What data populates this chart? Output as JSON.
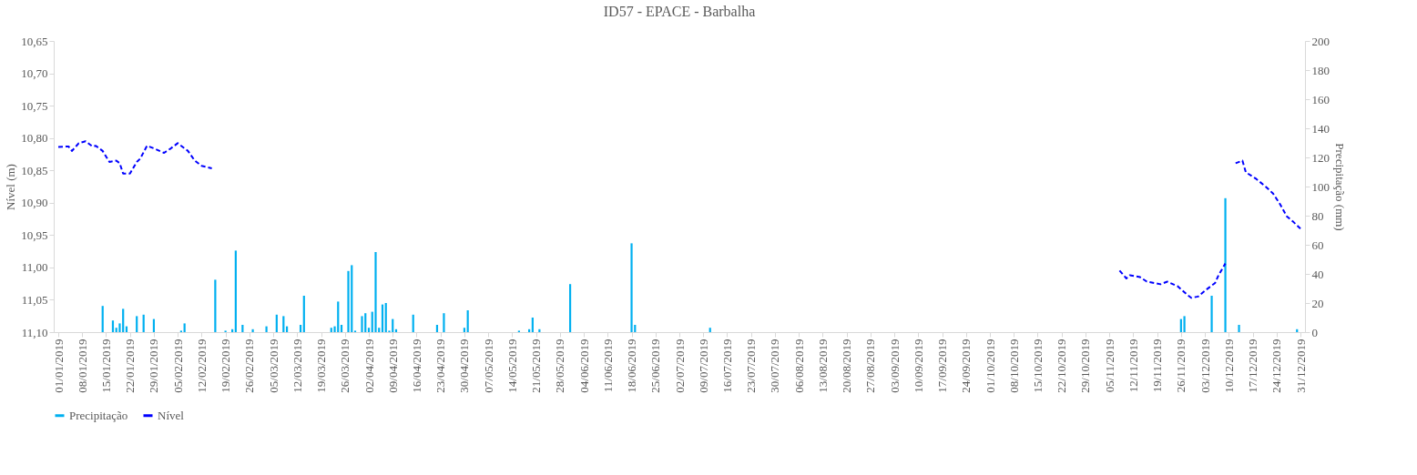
{
  "chart_data": {
    "type": "bar",
    "title": "ID57 - EPACE - Barbalha",
    "ylabel": "Nível (m)",
    "y2label": "Precipitação (mm)",
    "xlim": [
      "2019-01-01",
      "2019-12-31"
    ],
    "xticks": [
      {
        "value": "2019-01-01",
        "label": "01/01/2019"
      },
      {
        "value": "2019-01-08",
        "label": "08/01/2019"
      },
      {
        "value": "2019-01-15",
        "label": "15/01/2019"
      },
      {
        "value": "2019-01-22",
        "label": "22/01/2019"
      },
      {
        "value": "2019-01-29",
        "label": "29/01/2019"
      },
      {
        "value": "2019-02-05",
        "label": "05/02/2019"
      },
      {
        "value": "2019-02-12",
        "label": "12/02/2019"
      },
      {
        "value": "2019-02-19",
        "label": "19/02/2019"
      },
      {
        "value": "2019-02-26",
        "label": "26/02/2019"
      },
      {
        "value": "2019-03-05",
        "label": "05/03/2019"
      },
      {
        "value": "2019-03-12",
        "label": "12/03/2019"
      },
      {
        "value": "2019-03-19",
        "label": "19/03/2019"
      },
      {
        "value": "2019-03-26",
        "label": "26/03/2019"
      },
      {
        "value": "2019-04-02",
        "label": "02/04/2019"
      },
      {
        "value": "2019-04-09",
        "label": "09/04/2019"
      },
      {
        "value": "2019-04-16",
        "label": "16/04/2019"
      },
      {
        "value": "2019-04-23",
        "label": "23/04/2019"
      },
      {
        "value": "2019-04-30",
        "label": "30/04/2019"
      },
      {
        "value": "2019-05-07",
        "label": "07/05/2019"
      },
      {
        "value": "2019-05-14",
        "label": "14/05/2019"
      },
      {
        "value": "2019-05-21",
        "label": "21/05/2019"
      },
      {
        "value": "2019-05-28",
        "label": "28/05/2019"
      },
      {
        "value": "2019-06-04",
        "label": "04/06/2019"
      },
      {
        "value": "2019-06-11",
        "label": "11/06/2019"
      },
      {
        "value": "2019-06-18",
        "label": "18/06/2019"
      },
      {
        "value": "2019-06-25",
        "label": "25/06/2019"
      },
      {
        "value": "2019-07-02",
        "label": "02/07/2019"
      },
      {
        "value": "2019-07-09",
        "label": "09/07/2019"
      },
      {
        "value": "2019-07-16",
        "label": "16/07/2019"
      },
      {
        "value": "2019-07-23",
        "label": "23/07/2019"
      },
      {
        "value": "2019-07-30",
        "label": "30/07/2019"
      },
      {
        "value": "2019-08-06",
        "label": "06/08/2019"
      },
      {
        "value": "2019-08-13",
        "label": "13/08/2019"
      },
      {
        "value": "2019-08-20",
        "label": "20/08/2019"
      },
      {
        "value": "2019-08-27",
        "label": "27/08/2019"
      },
      {
        "value": "2019-09-03",
        "label": "03/09/2019"
      },
      {
        "value": "2019-09-10",
        "label": "10/09/2019"
      },
      {
        "value": "2019-09-17",
        "label": "17/09/2019"
      },
      {
        "value": "2019-09-24",
        "label": "24/09/2019"
      },
      {
        "value": "2019-10-01",
        "label": "01/10/2019"
      },
      {
        "value": "2019-10-08",
        "label": "08/10/2019"
      },
      {
        "value": "2019-10-15",
        "label": "15/10/2019"
      },
      {
        "value": "2019-10-22",
        "label": "22/10/2019"
      },
      {
        "value": "2019-10-29",
        "label": "29/10/2019"
      },
      {
        "value": "2019-11-05",
        "label": "05/11/2019"
      },
      {
        "value": "2019-11-12",
        "label": "12/11/2019"
      },
      {
        "value": "2019-11-19",
        "label": "19/11/2019"
      },
      {
        "value": "2019-11-26",
        "label": "26/11/2019"
      },
      {
        "value": "2019-12-03",
        "label": "03/12/2019"
      },
      {
        "value": "2019-12-10",
        "label": "10/12/2019"
      },
      {
        "value": "2019-12-17",
        "label": "17/12/2019"
      },
      {
        "value": "2019-12-24",
        "label": "24/12/2019"
      },
      {
        "value": "2019-12-31",
        "label": "31/12/2019"
      }
    ],
    "ylim": [
      11.1,
      10.65
    ],
    "yticks": [
      {
        "value": 10.65,
        "label": "10,65"
      },
      {
        "value": 10.7,
        "label": "10,70"
      },
      {
        "value": 10.75,
        "label": "10,75"
      },
      {
        "value": 10.8,
        "label": "10,80"
      },
      {
        "value": 10.85,
        "label": "10,85"
      },
      {
        "value": 10.9,
        "label": "10,90"
      },
      {
        "value": 10.95,
        "label": "10,95"
      },
      {
        "value": 11.0,
        "label": "11,00"
      },
      {
        "value": 11.05,
        "label": "11,05"
      },
      {
        "value": 11.1,
        "label": "11,10"
      }
    ],
    "y2lim": [
      0,
      200
    ],
    "y2ticks": [
      0,
      20,
      40,
      60,
      80,
      100,
      120,
      140,
      160,
      180,
      200
    ],
    "grid": false,
    "legend": "bottom",
    "series": [
      {
        "name": "Precipitação",
        "axis": "y2",
        "color": "#00b0f0",
        "x": [
          "2019-01-14",
          "2019-01-17",
          "2019-01-18",
          "2019-01-19",
          "2019-01-20",
          "2019-01-21",
          "2019-01-24",
          "2019-01-26",
          "2019-01-29",
          "2019-02-06",
          "2019-02-07",
          "2019-02-16",
          "2019-02-19",
          "2019-02-21",
          "2019-02-22",
          "2019-02-24",
          "2019-02-27",
          "2019-03-03",
          "2019-03-06",
          "2019-03-08",
          "2019-03-09",
          "2019-03-13",
          "2019-03-14",
          "2019-03-22",
          "2019-03-23",
          "2019-03-24",
          "2019-03-25",
          "2019-03-27",
          "2019-03-28",
          "2019-03-29",
          "2019-03-31",
          "2019-04-01",
          "2019-04-02",
          "2019-04-03",
          "2019-04-04",
          "2019-04-05",
          "2019-04-06",
          "2019-04-07",
          "2019-04-08",
          "2019-04-09",
          "2019-04-10",
          "2019-04-15",
          "2019-04-22",
          "2019-04-24",
          "2019-04-30",
          "2019-05-01",
          "2019-05-16",
          "2019-05-19",
          "2019-05-20",
          "2019-05-22",
          "2019-05-31",
          "2019-06-18",
          "2019-06-19",
          "2019-07-11",
          "2019-11-26",
          "2019-11-27",
          "2019-12-05",
          "2019-12-09",
          "2019-12-13",
          "2019-12-30"
        ],
        "values": [
          18,
          8,
          3,
          6,
          16,
          4,
          11,
          12,
          9,
          1,
          6,
          36,
          1,
          2,
          56,
          5,
          2,
          4,
          12,
          11,
          4,
          5,
          25,
          3,
          4,
          21,
          5,
          42,
          46,
          1,
          11,
          13,
          3,
          14,
          55,
          3,
          19,
          20,
          1,
          9,
          2,
          12,
          5,
          13,
          3,
          15,
          1,
          2,
          10,
          2,
          33,
          61,
          5,
          3,
          9,
          11,
          25,
          92,
          5,
          2
        ]
      },
      {
        "name": "Nível",
        "type": "line",
        "color": "#0000ff",
        "line_style": "dashed",
        "marker": "none",
        "x": [
          "2019-01-01",
          "2019-01-04",
          "2019-01-05",
          "2019-01-07",
          "2019-01-09",
          "2019-01-11",
          "2019-01-12",
          "2019-01-14",
          "2019-01-16",
          "2019-01-18",
          "2019-01-19",
          "2019-01-20",
          "2019-01-22",
          "2019-01-24",
          "2019-01-25",
          "2019-01-27",
          "2019-01-29",
          "2019-02-01",
          "2019-02-03",
          "2019-02-05",
          "2019-02-08",
          "2019-02-10",
          "2019-02-12",
          "2019-02-15",
          "2019-02-16",
          "2019-11-08",
          "2019-11-10",
          "2019-11-11",
          "2019-11-14",
          "2019-11-16",
          "2019-11-20",
          "2019-11-22",
          "2019-11-25",
          "2019-11-28",
          "2019-11-29",
          "2019-12-01",
          "2019-12-03",
          "2019-12-06",
          "2019-12-07",
          "2019-12-09",
          "2019-12-10",
          "2019-12-12",
          "2019-12-14",
          "2019-12-15",
          "2019-12-18",
          "2019-12-21",
          "2019-12-23",
          "2019-12-25",
          "2019-12-27",
          "2019-12-29",
          "2019-12-31"
        ],
        "values": [
          10.814,
          10.813,
          10.82,
          10.808,
          10.805,
          10.813,
          10.812,
          10.82,
          10.837,
          10.835,
          10.839,
          10.855,
          10.855,
          10.837,
          10.832,
          10.812,
          10.816,
          10.823,
          10.816,
          10.808,
          10.82,
          10.835,
          10.843,
          10.847,
          null,
          11.005,
          11.017,
          11.012,
          11.015,
          11.022,
          11.026,
          11.022,
          11.029,
          11.043,
          11.047,
          11.045,
          11.036,
          11.024,
          11.012,
          10.994,
          null,
          10.839,
          10.835,
          10.853,
          10.863,
          10.876,
          10.886,
          10.902,
          10.921,
          10.93,
          10.94
        ]
      }
    ]
  }
}
